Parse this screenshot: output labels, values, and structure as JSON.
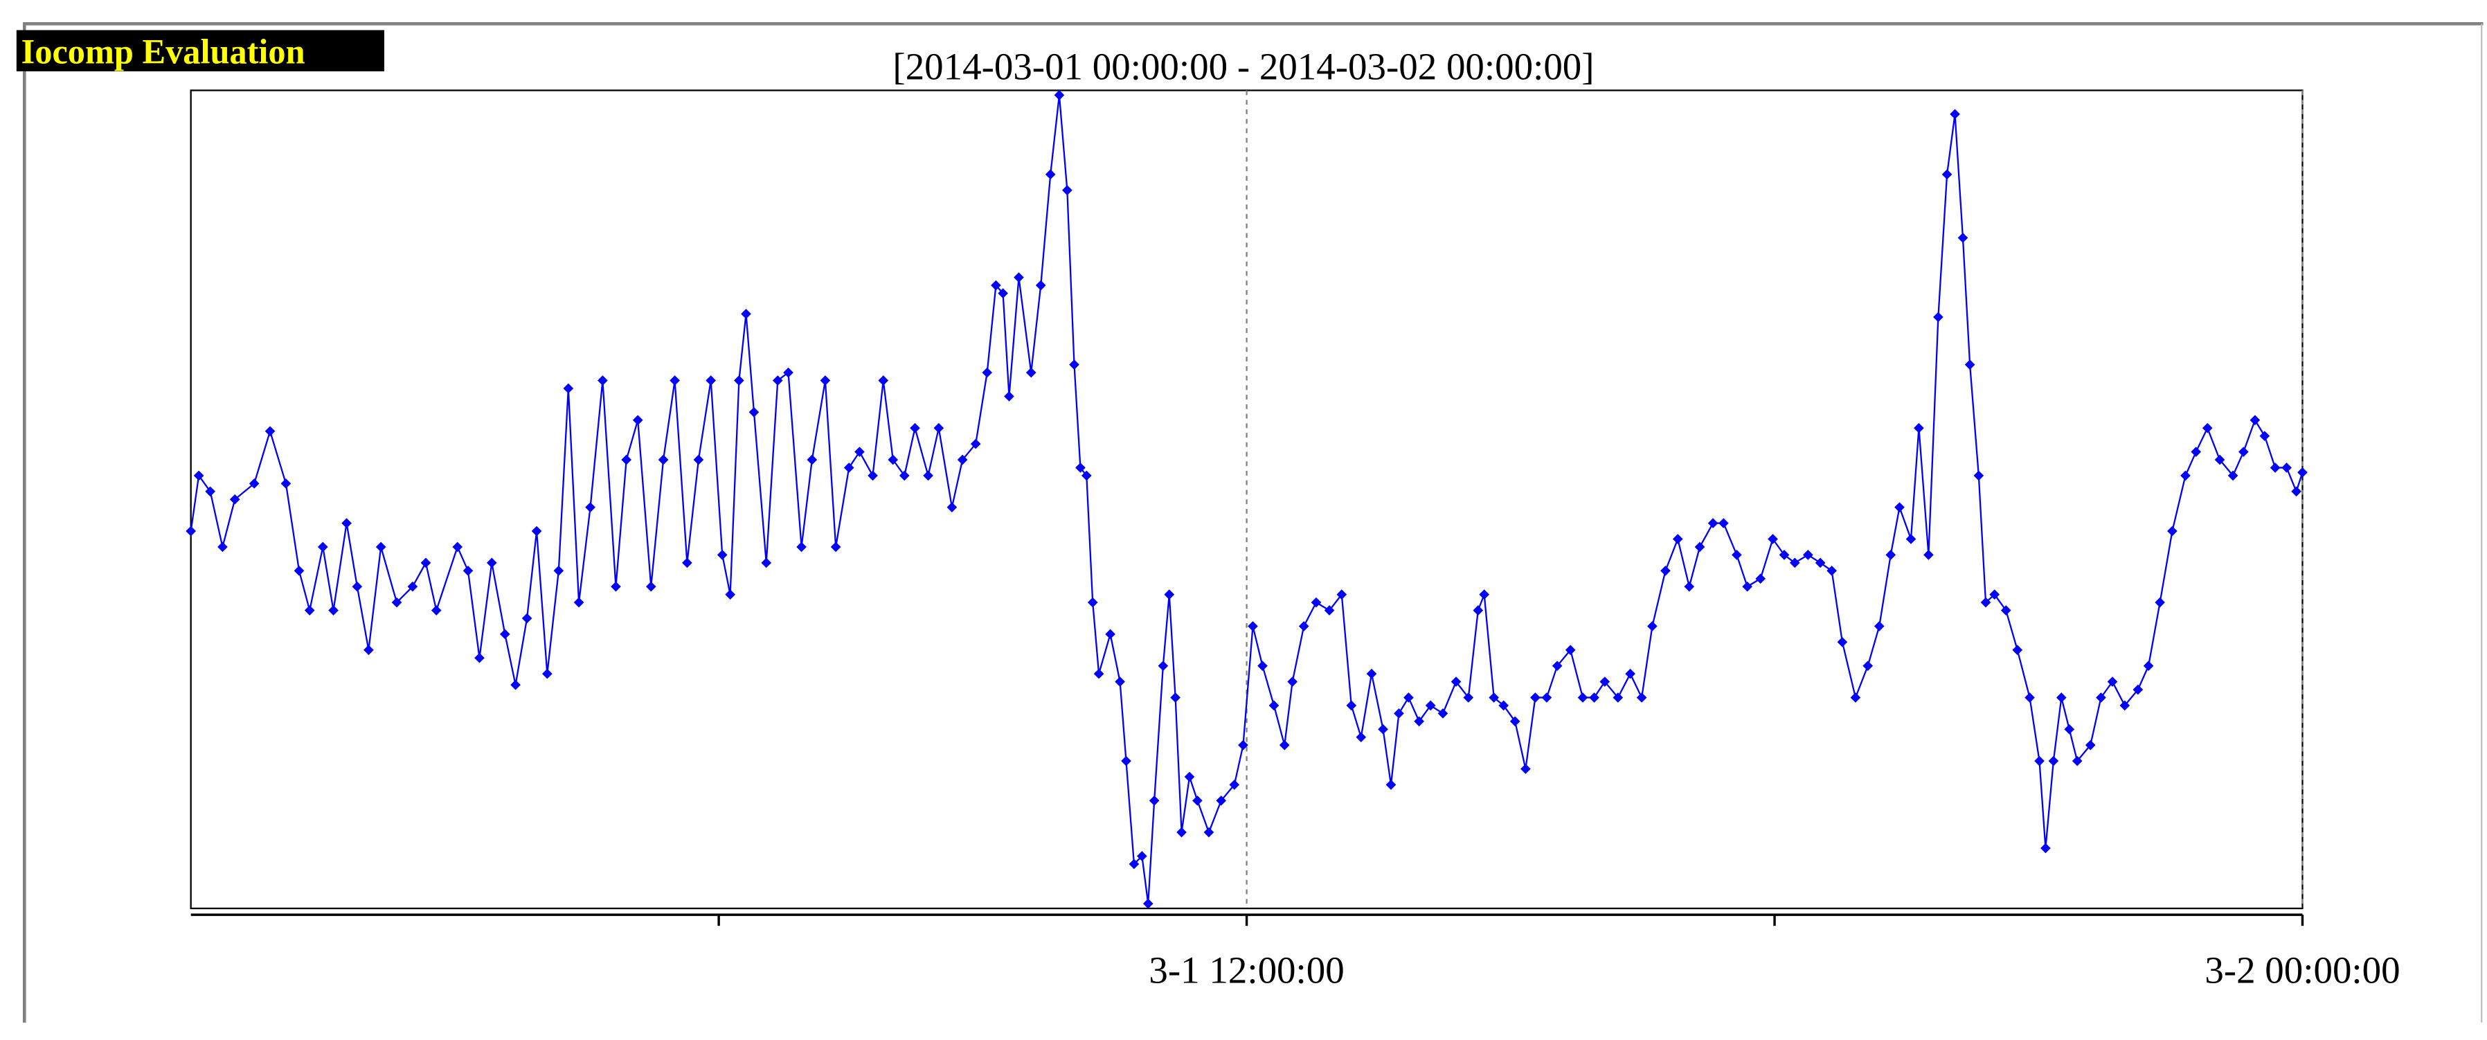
{
  "watermark": "Iocomp Evaluation",
  "chart_data": {
    "type": "line",
    "title": "[2014-03-01 00:00:00 - 2014-03-02 00:00:00]",
    "xlim": [
      0,
      24
    ],
    "ylim": [
      0,
      516
    ],
    "xticks": [
      {
        "value": 6,
        "label": null
      },
      {
        "value": 12,
        "label": "3-1 12:00:00"
      },
      {
        "value": 18,
        "label": null
      },
      {
        "value": 24,
        "label": "3-2 00:00:00"
      }
    ],
    "grid": true,
    "x": [
      0,
      0.09,
      0.22,
      0.36,
      0.5,
      0.72,
      0.9,
      1.08,
      1.23,
      1.35,
      1.5,
      1.62,
      1.77,
      1.89,
      2.02,
      2.16,
      2.34,
      2.52,
      2.67,
      2.79,
      3.03,
      3.15,
      3.28,
      3.42,
      3.57,
      3.69,
      3.82,
      3.93,
      4.05,
      4.18,
      4.29,
      4.41,
      4.54,
      4.68,
      4.83,
      4.95,
      5.08,
      5.23,
      5.37,
      5.5,
      5.64,
      5.77,
      5.91,
      6.04,
      6.13,
      6.23,
      6.31,
      6.4,
      6.54,
      6.67,
      6.79,
      6.94,
      7.06,
      7.21,
      7.33,
      7.48,
      7.6,
      7.75,
      7.87,
      7.98,
      8.11,
      8.23,
      8.38,
      8.5,
      8.65,
      8.77,
      8.92,
      9.05,
      9.15,
      9.23,
      9.3,
      9.41,
      9.55,
      9.66,
      9.77,
      9.87,
      9.96,
      10.04,
      10.11,
      10.18,
      10.25,
      10.32,
      10.45,
      10.56,
      10.63,
      10.72,
      10.81,
      10.88,
      10.95,
      11.05,
      11.12,
      11.19,
      11.26,
      11.35,
      11.44,
      11.57,
      11.71,
      11.86,
      11.96,
      12.07,
      12.18,
      12.31,
      12.43,
      12.52,
      12.65,
      12.79,
      12.94,
      13.08,
      13.19,
      13.3,
      13.42,
      13.55,
      13.64,
      13.73,
      13.84,
      13.96,
      14.09,
      14.23,
      14.38,
      14.52,
      14.63,
      14.7,
      14.81,
      14.92,
      15.05,
      15.17,
      15.28,
      15.41,
      15.53,
      15.68,
      15.82,
      15.95,
      16.07,
      16.22,
      16.36,
      16.49,
      16.61,
      16.76,
      16.9,
      17.03,
      17.15,
      17.3,
      17.42,
      17.57,
      17.69,
      17.84,
      17.98,
      18.11,
      18.23,
      18.38,
      18.52,
      18.65,
      18.77,
      18.92,
      19.06,
      19.19,
      19.32,
      19.42,
      19.55,
      19.64,
      19.75,
      19.86,
      19.96,
      20.05,
      20.14,
      20.22,
      20.32,
      20.4,
      20.5,
      20.63,
      20.76,
      20.9,
      21.01,
      21.08,
      21.17,
      21.26,
      21.35,
      21.44,
      21.59,
      21.71,
      21.84,
      21.98,
      22.13,
      22.25,
      22.38,
      22.52,
      22.67,
      22.79,
      22.92,
      23.06,
      23.21,
      23.33,
      23.46,
      23.57,
      23.69,
      23.82,
      23.93,
      24
    ],
    "series": [
      {
        "color": "#0000ff",
        "values": [
          238,
          273,
          263,
          228,
          258,
          268,
          301,
          268,
          213,
          188,
          228,
          188,
          243,
          203,
          163,
          228,
          193,
          203,
          218,
          188,
          228,
          213,
          158,
          218,
          173,
          141,
          183,
          238,
          148,
          213,
          328,
          193,
          253,
          333,
          203,
          283,
          308,
          203,
          283,
          333,
          218,
          283,
          333,
          223,
          198,
          333,
          375,
          313,
          218,
          333,
          338,
          228,
          283,
          333,
          228,
          278,
          288,
          273,
          333,
          283,
          273,
          303,
          273,
          303,
          253,
          283,
          293,
          338,
          393,
          388,
          323,
          398,
          338,
          393,
          463,
          513,
          453,
          343,
          278,
          273,
          193,
          148,
          173,
          143,
          93,
          28,
          33,
          3,
          68,
          153,
          198,
          133,
          48,
          83,
          68,
          48,
          68,
          78,
          103,
          178,
          153,
          128,
          103,
          143,
          178,
          193,
          188,
          198,
          128,
          108,
          148,
          113,
          78,
          123,
          133,
          118,
          128,
          123,
          143,
          133,
          188,
          198,
          133,
          128,
          118,
          88,
          133,
          133,
          153,
          163,
          133,
          133,
          143,
          133,
          148,
          133,
          178,
          213,
          233,
          203,
          228,
          243,
          243,
          223,
          203,
          208,
          233,
          223,
          218,
          223,
          218,
          213,
          168,
          133,
          153,
          178,
          223,
          253,
          233,
          303,
          223,
          373,
          463,
          501,
          423,
          343,
          273,
          193,
          198,
          188,
          163,
          133,
          93,
          38,
          93,
          133,
          113,
          93,
          103,
          133,
          143,
          128,
          138,
          153,
          193,
          238,
          273,
          288,
          303,
          283,
          273,
          288,
          308,
          298,
          278,
          278,
          263,
          275
        ]
      }
    ]
  }
}
